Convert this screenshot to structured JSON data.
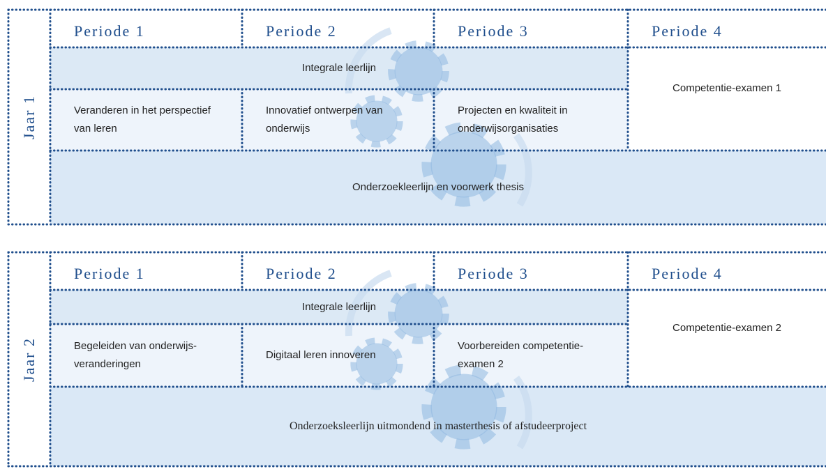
{
  "years": [
    {
      "label": "Jaar 1",
      "periods": [
        "Periode 1",
        "Periode 2",
        "Periode 3",
        "Periode 4"
      ],
      "integral": "Integrale leerlijn",
      "courses": [
        "Veranderen in het perspectief van leren",
        "Innovatief ontwerpen van onderwijs",
        "Projecten en kwaliteit in onderwijsorganisaties"
      ],
      "exam": "Competentie-examen 1",
      "research": "Onderzoekleerlijn en voorwerk thesis"
    },
    {
      "label": "Jaar 2",
      "periods": [
        "Periode 1",
        "Periode 2",
        "Periode 3",
        "Periode 4"
      ],
      "integral": "Integrale leerlijn",
      "courses": [
        "Begeleiden van onderwijs-veranderingen",
        "Digitaal leren innoveren",
        "Voorbereiden competentie-examen 2"
      ],
      "exam": "Competentie-examen 2",
      "research": "Onderzoeksleerlijn uitmondend in masterthesis of afstudeerproject"
    }
  ]
}
